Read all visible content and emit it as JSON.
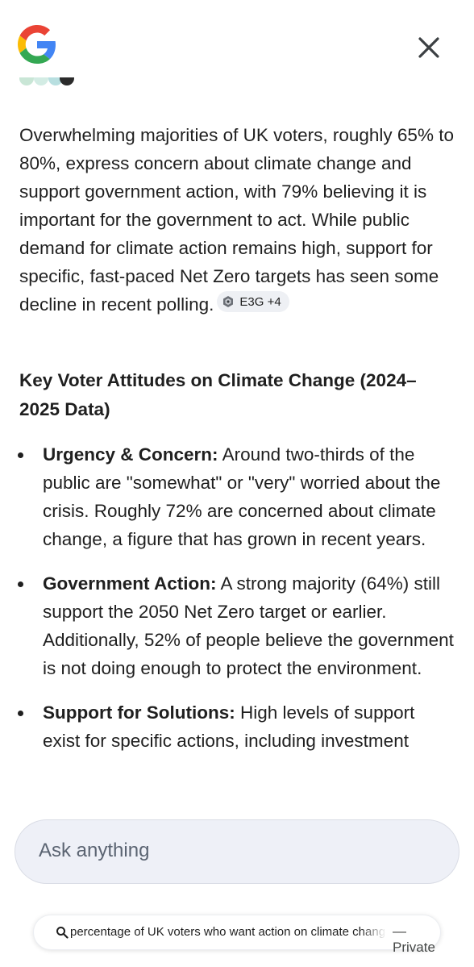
{
  "header": {
    "logo_icon": "google-g-icon",
    "close_icon": "close-icon"
  },
  "answer": {
    "paragraph": "Overwhelming majorities of UK voters, roughly 65% to 80%, express concern about climate change and support government action, with 79% believing it is important for the government to act. While public demand for climate action remains high, support for specific, fast-paced Net Zero targets has seen some decline in recent polling.",
    "source_chip": "E3G +4",
    "heading": "Key Voter Attitudes on Climate Change (2024–2025 Data)",
    "bullets": [
      {
        "title": "Urgency & Concern:",
        "text": "Around two-thirds of the public are \"somewhat\" or \"very\" worried about the crisis. Roughly 72% are concerned about climate change, a figure that has grown in recent years."
      },
      {
        "title": "Government Action:",
        "text": "A strong majority (64%) still support the 2050 Net Zero target or earlier. Additionally, 52% of people believe the government is not doing enough to protect the environment."
      },
      {
        "title": "Support for Solutions:",
        "text": "High levels of support exist for specific actions, including investment"
      }
    ]
  },
  "composer": {
    "placeholder": "Ask anything"
  },
  "query_bar": {
    "query": "percentage of UK voters who want action on climate change",
    "separator": "—",
    "mode": "Private"
  },
  "colors": {
    "text": "#1f1f1f",
    "ask_bg": "#eef0f7",
    "chip_bg": "#eef0f4",
    "google_blue": "#4285F4",
    "google_red": "#EA4335",
    "google_yellow": "#FBBC05",
    "google_green": "#34A853"
  }
}
